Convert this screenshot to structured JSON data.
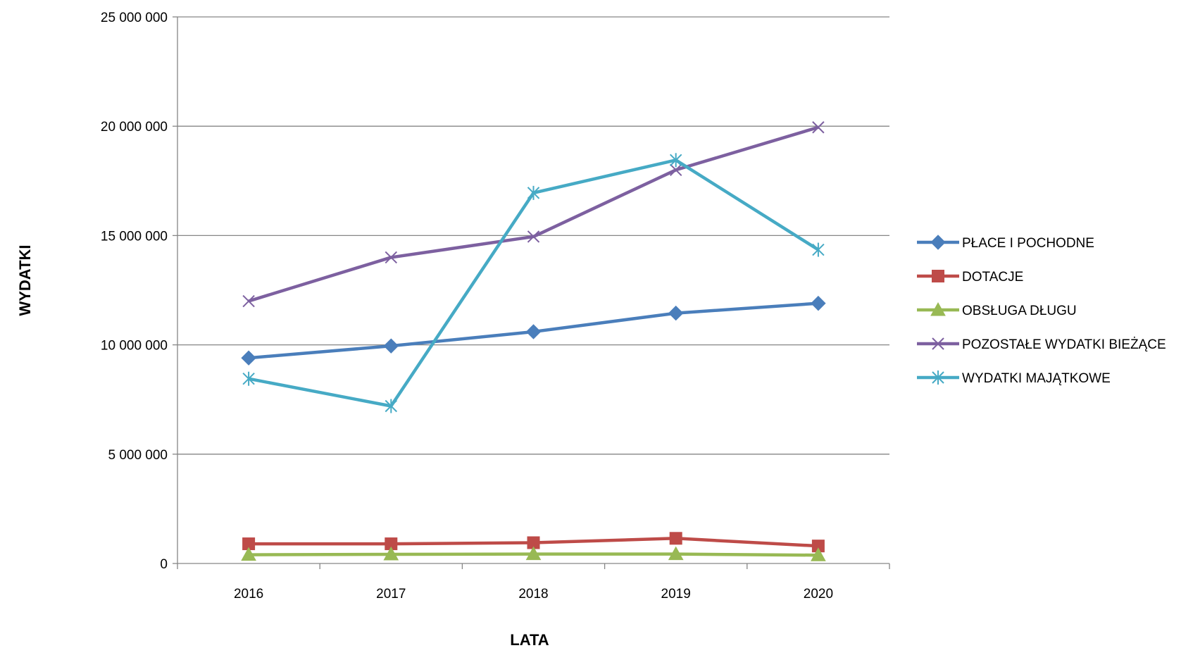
{
  "chart_data": {
    "type": "line",
    "title": "",
    "xlabel": "LATA",
    "ylabel": "WYDATKI",
    "categories": [
      "2016",
      "2017",
      "2018",
      "2019",
      "2020"
    ],
    "ylim": [
      0,
      25000000
    ],
    "yticks": [
      0,
      5000000,
      10000000,
      15000000,
      20000000,
      25000000
    ],
    "ytick_labels": [
      "0",
      "5 000 000",
      "10 000 000",
      "15 000 000",
      "20 000 000",
      "25 000 000"
    ],
    "grid": true,
    "legend": "right",
    "series": [
      {
        "name": "PŁACE I POCHODNE",
        "values": [
          9400000,
          9950000,
          10600000,
          11450000,
          11900000
        ],
        "color": "#4a7ebb",
        "marker": "diamond"
      },
      {
        "name": "DOTACJE",
        "values": [
          900000,
          900000,
          950000,
          1150000,
          800000
        ],
        "color": "#be4b48",
        "marker": "square"
      },
      {
        "name": "OBSŁUGA DŁUGU",
        "values": [
          400000,
          420000,
          430000,
          430000,
          380000
        ],
        "color": "#98b954",
        "marker": "triangle"
      },
      {
        "name": "POZOSTAŁE WYDATKI BIEŻĄCE",
        "values": [
          12000000,
          14000000,
          14950000,
          18000000,
          19950000
        ],
        "color": "#7d60a0",
        "marker": "x"
      },
      {
        "name": "WYDATKI MAJĄTKOWE",
        "values": [
          8450000,
          7200000,
          16950000,
          18450000,
          14350000
        ],
        "color": "#46aac5",
        "marker": "star"
      }
    ]
  }
}
